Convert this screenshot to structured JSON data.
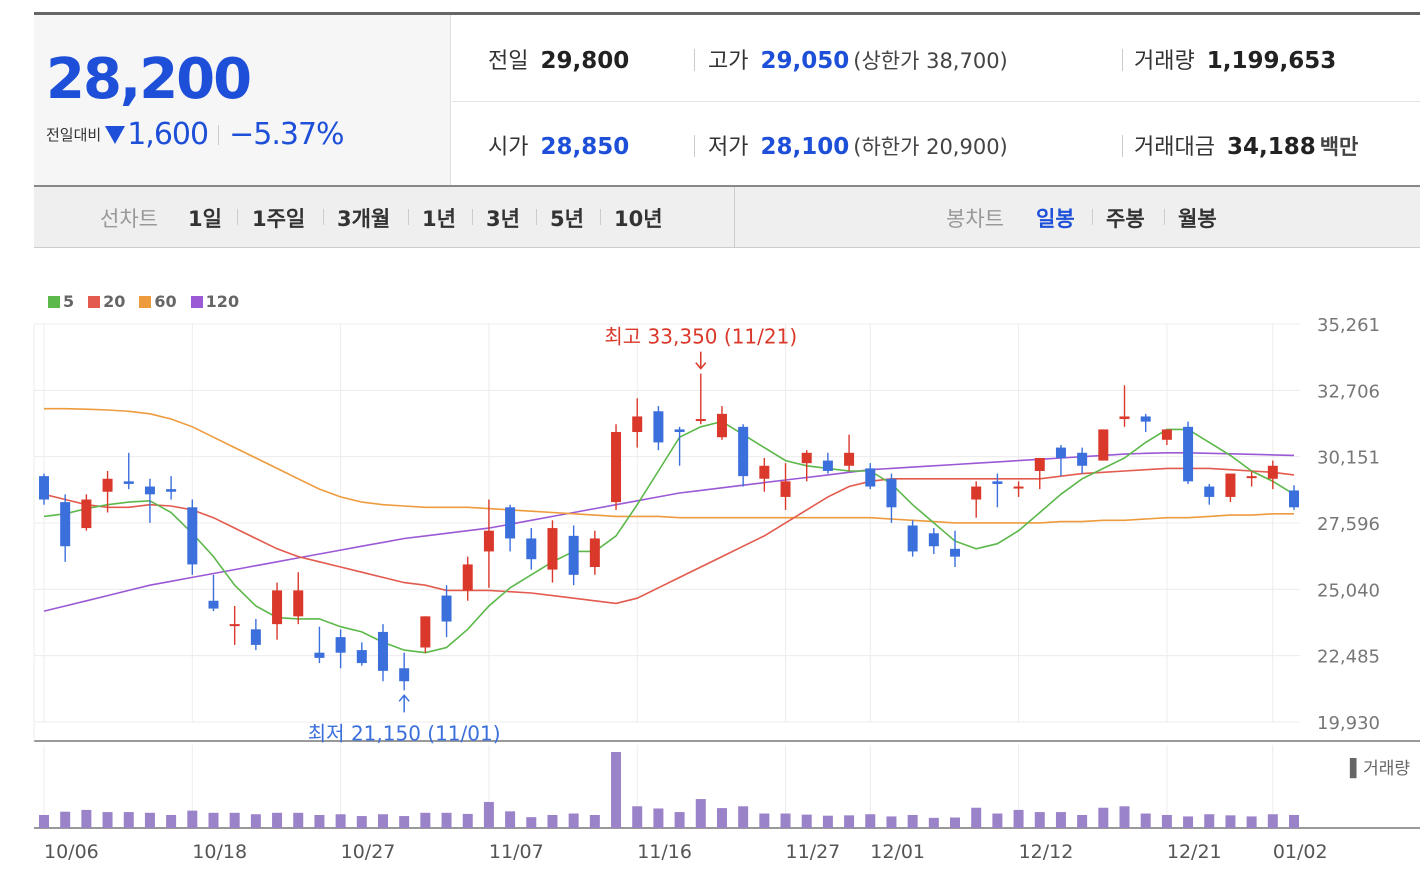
{
  "summary": {
    "price": "28,200",
    "change_label": "전일대비",
    "change_amount": "1,600",
    "change_pct": "−5.37%"
  },
  "info": {
    "prev_label": "전일",
    "prev_value": "29,800",
    "high_label": "고가",
    "high_value": "29,050",
    "upper_limit": "(상한가 38,700)",
    "volume_label": "거래량",
    "volume_value": "1,199,653",
    "open_label": "시가",
    "open_value": "28,850",
    "low_label": "저가",
    "low_value": "28,100",
    "lower_limit": "(하한가 20,900)",
    "amount_label": "거래대금",
    "amount_value": "34,188",
    "amount_unit": "백만"
  },
  "tabs": {
    "line_label": "선차트",
    "line_periods": [
      "1일",
      "1주일",
      "3개월",
      "1년",
      "3년",
      "5년",
      "10년"
    ],
    "candle_label": "봉차트",
    "candle_periods": [
      "일봉",
      "주봉",
      "월봉"
    ]
  },
  "colors": {
    "up": "#d9382a",
    "down": "#3b6fdb",
    "ma5": "#5cb84a",
    "ma20": "#e35a4e",
    "ma60": "#ee9b3e",
    "ma120": "#9b59d6",
    "volume": "#9b83c9"
  },
  "chart_data": {
    "type": "candlestick",
    "legend": [
      "5",
      "20",
      "60",
      "120"
    ],
    "y_ticks": [
      "35,261",
      "32,706",
      "30,151",
      "27,596",
      "25,040",
      "22,485",
      "19,930"
    ],
    "ylim": [
      19930,
      35261
    ],
    "x_ticks": [
      "10/06",
      "10/18",
      "10/27",
      "11/07",
      "11/16",
      "11/27",
      "12/01",
      "12/12",
      "12/21",
      "01/02"
    ],
    "x_tick_index": [
      0,
      7,
      14,
      21,
      28,
      35,
      39,
      46,
      53,
      58
    ],
    "annotation_high": "최고 33,350 (11/21)",
    "annotation_low": "최저 21,150 (11/01)",
    "high_point": {
      "index": 31,
      "value": 33350
    },
    "low_point": {
      "index": 17,
      "value": 21150
    },
    "volume_label": "거래량",
    "candles": [
      {
        "o": 29400,
        "h": 29500,
        "l": 28300,
        "c": 28500
      },
      {
        "o": 28400,
        "h": 28700,
        "l": 26100,
        "c": 26700
      },
      {
        "o": 27400,
        "h": 28700,
        "l": 27300,
        "c": 28500
      },
      {
        "o": 28800,
        "h": 29600,
        "l": 28000,
        "c": 29300
      },
      {
        "o": 29200,
        "h": 30300,
        "l": 28900,
        "c": 29100
      },
      {
        "o": 29000,
        "h": 29300,
        "l": 27600,
        "c": 28700
      },
      {
        "o": 28900,
        "h": 29400,
        "l": 28500,
        "c": 28800
      },
      {
        "o": 28200,
        "h": 28500,
        "l": 25600,
        "c": 26000
      },
      {
        "o": 24600,
        "h": 25600,
        "l": 24200,
        "c": 24300
      },
      {
        "o": 23700,
        "h": 24400,
        "l": 22900,
        "c": 23700
      },
      {
        "o": 23500,
        "h": 23900,
        "l": 22700,
        "c": 22900
      },
      {
        "o": 23700,
        "h": 25300,
        "l": 23100,
        "c": 25000
      },
      {
        "o": 24000,
        "h": 25700,
        "l": 23700,
        "c": 25000
      },
      {
        "o": 22600,
        "h": 23600,
        "l": 22200,
        "c": 22400
      },
      {
        "o": 23200,
        "h": 23500,
        "l": 22000,
        "c": 22600
      },
      {
        "o": 22700,
        "h": 23000,
        "l": 22100,
        "c": 22200
      },
      {
        "o": 23400,
        "h": 23700,
        "l": 21500,
        "c": 21900
      },
      {
        "o": 22000,
        "h": 22600,
        "l": 21150,
        "c": 21500
      },
      {
        "o": 22800,
        "h": 24000,
        "l": 22600,
        "c": 24000
      },
      {
        "o": 24800,
        "h": 25200,
        "l": 23200,
        "c": 23800
      },
      {
        "o": 25000,
        "h": 26300,
        "l": 24600,
        "c": 26000
      },
      {
        "o": 26500,
        "h": 28500,
        "l": 25100,
        "c": 27300
      },
      {
        "o": 28200,
        "h": 28300,
        "l": 26500,
        "c": 27000
      },
      {
        "o": 27000,
        "h": 27400,
        "l": 25800,
        "c": 26200
      },
      {
        "o": 25800,
        "h": 27700,
        "l": 25300,
        "c": 27400
      },
      {
        "o": 27100,
        "h": 27500,
        "l": 25200,
        "c": 25600
      },
      {
        "o": 25900,
        "h": 27300,
        "l": 25600,
        "c": 27000
      },
      {
        "o": 28400,
        "h": 31400,
        "l": 28100,
        "c": 31100
      },
      {
        "o": 31100,
        "h": 32400,
        "l": 30500,
        "c": 31700
      },
      {
        "o": 31900,
        "h": 32100,
        "l": 30400,
        "c": 30700
      },
      {
        "o": 31200,
        "h": 31300,
        "l": 29800,
        "c": 31100
      },
      {
        "o": 31600,
        "h": 33350,
        "l": 31400,
        "c": 31600
      },
      {
        "o": 30900,
        "h": 32100,
        "l": 30800,
        "c": 31800
      },
      {
        "o": 31300,
        "h": 31400,
        "l": 29000,
        "c": 29400
      },
      {
        "o": 29300,
        "h": 30100,
        "l": 28800,
        "c": 29800
      },
      {
        "o": 28600,
        "h": 29900,
        "l": 28100,
        "c": 29200
      },
      {
        "o": 29900,
        "h": 30400,
        "l": 29200,
        "c": 30300
      },
      {
        "o": 30000,
        "h": 30300,
        "l": 29500,
        "c": 29600
      },
      {
        "o": 29800,
        "h": 31000,
        "l": 29600,
        "c": 30300
      },
      {
        "o": 29700,
        "h": 29900,
        "l": 28900,
        "c": 29000
      },
      {
        "o": 29300,
        "h": 29500,
        "l": 27600,
        "c": 28200
      },
      {
        "o": 27500,
        "h": 27700,
        "l": 26300,
        "c": 26500
      },
      {
        "o": 27200,
        "h": 27400,
        "l": 26400,
        "c": 26700
      },
      {
        "o": 26600,
        "h": 27300,
        "l": 25900,
        "c": 26300
      },
      {
        "o": 28500,
        "h": 29200,
        "l": 27800,
        "c": 29000
      },
      {
        "o": 29200,
        "h": 29500,
        "l": 28200,
        "c": 29100
      },
      {
        "o": 29000,
        "h": 29200,
        "l": 28600,
        "c": 29000
      },
      {
        "o": 29600,
        "h": 30100,
        "l": 28900,
        "c": 30100
      },
      {
        "o": 30500,
        "h": 30600,
        "l": 29400,
        "c": 30100
      },
      {
        "o": 30300,
        "h": 30500,
        "l": 29500,
        "c": 29800
      },
      {
        "o": 30000,
        "h": 31200,
        "l": 30000,
        "c": 31200
      },
      {
        "o": 31600,
        "h": 32900,
        "l": 31300,
        "c": 31700
      },
      {
        "o": 31700,
        "h": 31800,
        "l": 31100,
        "c": 31500
      },
      {
        "o": 30800,
        "h": 31100,
        "l": 30600,
        "c": 31200
      },
      {
        "o": 31300,
        "h": 31500,
        "l": 29100,
        "c": 29200
      },
      {
        "o": 29000,
        "h": 29100,
        "l": 28300,
        "c": 28600
      },
      {
        "o": 28600,
        "h": 29500,
        "l": 28400,
        "c": 29500
      },
      {
        "o": 29400,
        "h": 29600,
        "l": 29000,
        "c": 29400
      },
      {
        "o": 29300,
        "h": 30000,
        "l": 28900,
        "c": 29800
      },
      {
        "o": 28850,
        "h": 29050,
        "l": 28100,
        "c": 28200
      }
    ],
    "volume": [
      36,
      45,
      50,
      44,
      44,
      42,
      36,
      48,
      42,
      42,
      38,
      42,
      42,
      36,
      38,
      33,
      38,
      33,
      42,
      42,
      39,
      72,
      46,
      30,
      36,
      40,
      36,
      210,
      60,
      54,
      44,
      80,
      55,
      60,
      40,
      40,
      37,
      34,
      35,
      38,
      32,
      36,
      28,
      29,
      56,
      40,
      50,
      44,
      44,
      36,
      56,
      60,
      40,
      36,
      32,
      38,
      35,
      32,
      38,
      36
    ],
    "ma": {
      "5": [
        27850,
        27950,
        28150,
        28300,
        28400,
        28450,
        28000,
        27200,
        26300,
        25200,
        24400,
        23950,
        23900,
        23900,
        23600,
        23400,
        23000,
        22700,
        22600,
        22800,
        23500,
        24400,
        25100,
        25600,
        26100,
        26500,
        26500,
        27100,
        28300,
        29600,
        30900,
        31300,
        31500,
        31000,
        30500,
        30000,
        29800,
        29700,
        29600,
        29600,
        29100,
        28300,
        27600,
        26900,
        26600,
        26800,
        27300,
        28000,
        28700,
        29300,
        29700,
        30100,
        30700,
        31200,
        31200,
        30700,
        30200,
        29600,
        29200,
        28700
      ],
      "20": [
        28700,
        28500,
        28300,
        28200,
        28200,
        28300,
        28250,
        28100,
        27800,
        27400,
        27000,
        26600,
        26300,
        26100,
        25900,
        25700,
        25500,
        25300,
        25200,
        25000,
        25000,
        25000,
        24950,
        24900,
        24800,
        24700,
        24600,
        24500,
        24700,
        25100,
        25500,
        25900,
        26300,
        26700,
        27100,
        27600,
        28100,
        28600,
        29000,
        29200,
        29300,
        29300,
        29300,
        29300,
        29300,
        29300,
        29300,
        29300,
        29400,
        29500,
        29550,
        29600,
        29650,
        29700,
        29700,
        29700,
        29650,
        29600,
        29550,
        29450
      ],
      "60": [
        32000,
        32000,
        31980,
        31950,
        31900,
        31800,
        31600,
        31300,
        30900,
        30500,
        30100,
        29700,
        29300,
        28900,
        28600,
        28400,
        28300,
        28250,
        28200,
        28200,
        28200,
        28150,
        28100,
        28050,
        28000,
        27950,
        27900,
        27850,
        27850,
        27850,
        27800,
        27800,
        27800,
        27800,
        27800,
        27800,
        27800,
        27800,
        27800,
        27800,
        27750,
        27700,
        27650,
        27600,
        27600,
        27600,
        27600,
        27600,
        27650,
        27650,
        27700,
        27700,
        27750,
        27800,
        27800,
        27850,
        27900,
        27900,
        27950,
        27950
      ],
      "120": [
        24200,
        24400,
        24600,
        24800,
        25000,
        25200,
        25350,
        25500,
        25650,
        25800,
        25950,
        26100,
        26250,
        26400,
        26550,
        26700,
        26850,
        27000,
        27100,
        27200,
        27300,
        27400,
        27550,
        27700,
        27850,
        28000,
        28150,
        28300,
        28450,
        28600,
        28750,
        28850,
        28950,
        29050,
        29150,
        29250,
        29350,
        29450,
        29550,
        29650,
        29700,
        29750,
        29800,
        29850,
        29900,
        29950,
        30000,
        30050,
        30100,
        30150,
        30200,
        30250,
        30280,
        30300,
        30300,
        30280,
        30260,
        30240,
        30220,
        30200
      ]
    }
  }
}
